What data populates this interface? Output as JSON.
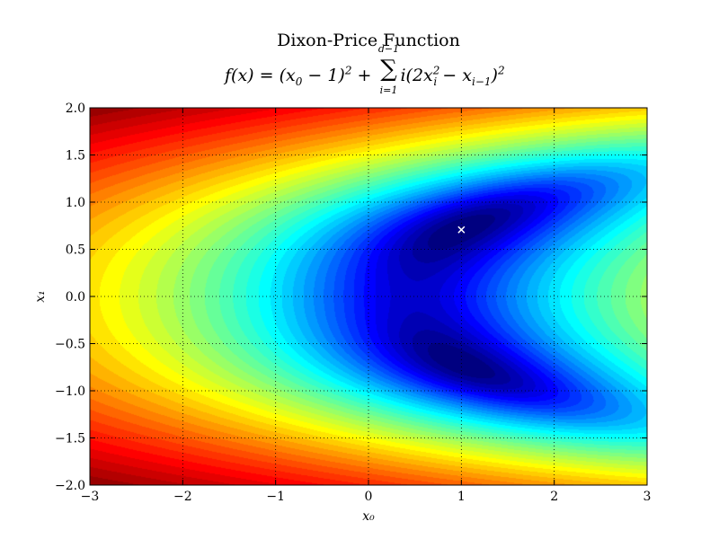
{
  "chart_data": {
    "type": "heatmap",
    "subtype": "filled-contour",
    "title": "Dixon-Price Function",
    "subtitle": "f(x) = (x₀ − 1)² + Σ_{i=1}^{d−1} i(2x_i² − x_{i−1})²",
    "subtitle_parts": {
      "lhs": "f(x) = (x",
      "sub0": "0",
      "mid": " − 1)",
      "sup2": "2",
      "plus": " + ",
      "sum_symbol": "∑",
      "sum_upper": "d−1",
      "sum_lower": "i=1",
      "rhs_a": "i(2x",
      "sub_i": "i",
      "sup_i": "2",
      "rhs_b": " − x",
      "sub_im1": "i−1",
      "rhs_c": ")",
      "sup_end": "2"
    },
    "xlabel": "x₀",
    "ylabel": "x₁",
    "xlim": [
      -3,
      3
    ],
    "ylim": [
      -2,
      2
    ],
    "x_ticks": [
      -3,
      -2,
      -1,
      0,
      1,
      2,
      3
    ],
    "x_tick_labels": [
      "−3",
      "−2",
      "−1",
      "0",
      "1",
      "2",
      "3"
    ],
    "y_ticks": [
      -2.0,
      -1.5,
      -1.0,
      -0.5,
      0.0,
      0.5,
      1.0,
      1.5,
      2.0
    ],
    "y_tick_labels": [
      "−2.0",
      "−1.5",
      "−1.0",
      "−0.5",
      "0.0",
      "0.5",
      "1.0",
      "1.5",
      "2.0"
    ],
    "grid": true,
    "colormap": "jet",
    "z_function": "(x0 - 1)^2 + (2*x1^2 - x0)^2",
    "color_scale": "log",
    "marker": {
      "x": 1.0,
      "y": 0.7071,
      "symbol": "×",
      "color": "#ffffff"
    }
  }
}
